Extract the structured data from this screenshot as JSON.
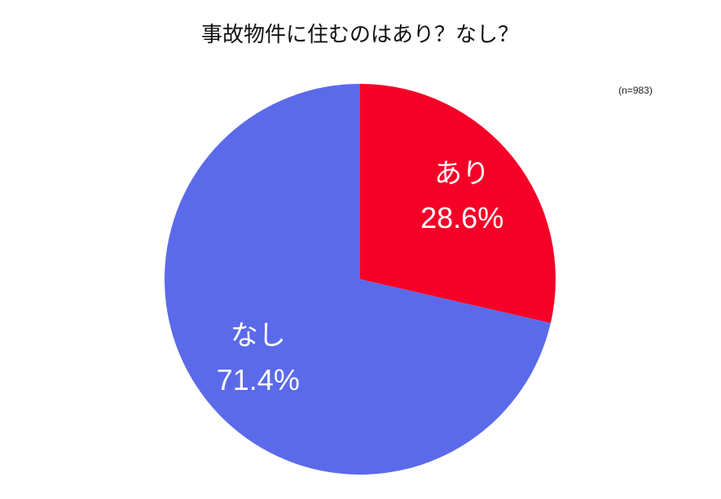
{
  "chart_data": {
    "type": "pie",
    "title": "事故物件に住むのはあり？なし？",
    "note": "(n=983)",
    "categories": [
      "あり",
      "なし"
    ],
    "values": [
      28.6,
      71.4
    ],
    "value_labels": [
      "28.6%",
      "71.4%"
    ],
    "colors": [
      "#f60027",
      "#5b6ae9"
    ]
  }
}
